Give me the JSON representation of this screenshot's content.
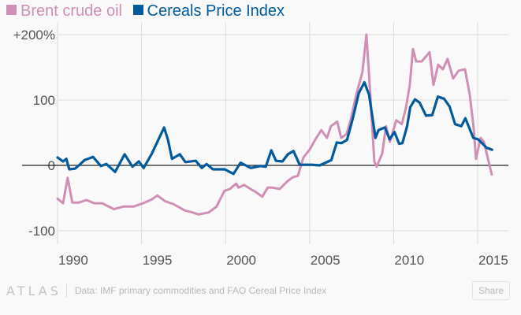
{
  "legend": [
    {
      "label": "Brent crude oil",
      "color": "#d08fb5"
    },
    {
      "label": "Cereals Price Index",
      "color": "#005a9c"
    }
  ],
  "footer": {
    "logo": "ATLAS",
    "source": "Data: IMF primary commodities and FAO Cereal Price Index",
    "share_label": "Share"
  },
  "chart_data": {
    "type": "line",
    "title": "",
    "xlabel": "",
    "ylabel": "",
    "xlim": [
      1988.5,
      2016.5
    ],
    "ylim": [
      -100,
      200
    ],
    "x_ticks": [
      1990,
      1995,
      2000,
      2005,
      2010,
      2015
    ],
    "x_tick_labels": [
      "1990",
      "1995",
      "2000",
      "2005",
      "2010",
      "2015"
    ],
    "y_ticks": [
      -100,
      0,
      100,
      200
    ],
    "y_tick_labels": [
      "-100",
      "0",
      "100",
      "+200%"
    ],
    "grid": true,
    "legend_position": "top-left",
    "series": [
      {
        "name": "Brent crude oil",
        "color": "#d08fb5",
        "points": [
          [
            1990.0,
            -51
          ],
          [
            1990.33,
            -58
          ],
          [
            1990.6,
            -19
          ],
          [
            1990.88,
            -57
          ],
          [
            1991.25,
            -57
          ],
          [
            1991.72,
            -53
          ],
          [
            1992.19,
            -58
          ],
          [
            1992.66,
            -58
          ],
          [
            1993.36,
            -67
          ],
          [
            1993.92,
            -63
          ],
          [
            1994.53,
            -63
          ],
          [
            1995.09,
            -58
          ],
          [
            1995.61,
            -52
          ],
          [
            1995.94,
            -46
          ],
          [
            1996.41,
            -55
          ],
          [
            1996.88,
            -59
          ],
          [
            1997.58,
            -69
          ],
          [
            1998.05,
            -72
          ],
          [
            1998.38,
            -75
          ],
          [
            1998.99,
            -72
          ],
          [
            1999.46,
            -63
          ],
          [
            1999.93,
            -39
          ],
          [
            2000.26,
            -36
          ],
          [
            2000.63,
            -28
          ],
          [
            2000.77,
            -34
          ],
          [
            2001.1,
            -30
          ],
          [
            2001.48,
            -36
          ],
          [
            2001.81,
            -41
          ],
          [
            2002.18,
            -48
          ],
          [
            2002.51,
            -34
          ],
          [
            2002.75,
            -34
          ],
          [
            2003.22,
            -36
          ],
          [
            2003.69,
            -24
          ],
          [
            2004.02,
            -18
          ],
          [
            2004.3,
            -16
          ],
          [
            2004.63,
            12
          ],
          [
            2005.0,
            24
          ],
          [
            2005.33,
            39
          ],
          [
            2005.7,
            54
          ],
          [
            2006.03,
            42
          ],
          [
            2006.27,
            60
          ],
          [
            2006.64,
            67
          ],
          [
            2006.88,
            42
          ],
          [
            2007.2,
            48
          ],
          [
            2007.44,
            69
          ],
          [
            2007.77,
            108
          ],
          [
            2008.14,
            142
          ],
          [
            2008.38,
            200
          ],
          [
            2008.61,
            108
          ],
          [
            2008.85,
            6
          ],
          [
            2008.99,
            -2
          ],
          [
            2009.32,
            18
          ],
          [
            2009.55,
            60
          ],
          [
            2009.78,
            36
          ],
          [
            2010.16,
            69
          ],
          [
            2010.49,
            63
          ],
          [
            2010.73,
            88
          ],
          [
            2010.96,
            123
          ],
          [
            2011.15,
            178
          ],
          [
            2011.34,
            159
          ],
          [
            2011.67,
            159
          ],
          [
            2012.14,
            173
          ],
          [
            2012.37,
            123
          ],
          [
            2012.65,
            154
          ],
          [
            2012.93,
            147
          ],
          [
            2013.21,
            163
          ],
          [
            2013.54,
            133
          ],
          [
            2013.87,
            145
          ],
          [
            2014.25,
            147
          ],
          [
            2014.53,
            108
          ],
          [
            2014.76,
            58
          ],
          [
            2014.9,
            10
          ],
          [
            2015.18,
            42
          ],
          [
            2015.37,
            36
          ],
          [
            2015.65,
            6
          ],
          [
            2015.84,
            -14
          ]
        ]
      },
      {
        "name": "Cereals Price Index",
        "color": "#005a9c",
        "points": [
          [
            1990.0,
            12
          ],
          [
            1990.33,
            6
          ],
          [
            1990.52,
            10
          ],
          [
            1990.7,
            -6
          ],
          [
            1991.03,
            -5
          ],
          [
            1991.27,
            0
          ],
          [
            1991.6,
            8
          ],
          [
            1992.11,
            13
          ],
          [
            1992.58,
            -1
          ],
          [
            1992.91,
            2
          ],
          [
            1993.43,
            -10
          ],
          [
            1993.99,
            17
          ],
          [
            1994.46,
            -2
          ],
          [
            1994.84,
            6
          ],
          [
            1995.12,
            -4
          ],
          [
            1995.59,
            17
          ],
          [
            1996.34,
            58
          ],
          [
            1996.57,
            39
          ],
          [
            1996.81,
            10
          ],
          [
            1997.28,
            17
          ],
          [
            1997.61,
            5
          ],
          [
            1998.22,
            7
          ],
          [
            1998.59,
            -4
          ],
          [
            1998.87,
            2
          ],
          [
            1999.25,
            -6
          ],
          [
            1999.95,
            -6
          ],
          [
            2000.47,
            -13
          ],
          [
            2000.89,
            4
          ],
          [
            2001.5,
            -4
          ],
          [
            2002.06,
            -1
          ],
          [
            2002.39,
            -2
          ],
          [
            2002.72,
            23
          ],
          [
            2003.0,
            7
          ],
          [
            2003.38,
            6
          ],
          [
            2003.71,
            17
          ],
          [
            2004.04,
            22
          ],
          [
            2004.41,
            1
          ],
          [
            2005.12,
            1
          ],
          [
            2005.59,
            0
          ],
          [
            2006.29,
            8
          ],
          [
            2006.62,
            35
          ],
          [
            2006.9,
            34
          ],
          [
            2007.23,
            39
          ],
          [
            2007.56,
            71
          ],
          [
            2007.93,
            111
          ],
          [
            2008.26,
            127
          ],
          [
            2008.54,
            108
          ],
          [
            2008.73,
            75
          ],
          [
            2008.92,
            42
          ],
          [
            2009.1,
            54
          ],
          [
            2009.48,
            58
          ],
          [
            2009.76,
            40
          ],
          [
            2010.05,
            51
          ],
          [
            2010.33,
            33
          ],
          [
            2010.52,
            34
          ],
          [
            2010.8,
            60
          ],
          [
            2010.99,
            89
          ],
          [
            2011.27,
            101
          ],
          [
            2011.55,
            96
          ],
          [
            2011.93,
            76
          ],
          [
            2012.3,
            77
          ],
          [
            2012.63,
            105
          ],
          [
            2013.0,
            102
          ],
          [
            2013.33,
            90
          ],
          [
            2013.66,
            63
          ],
          [
            2014.03,
            60
          ],
          [
            2014.27,
            72
          ],
          [
            2014.74,
            42
          ],
          [
            2015.02,
            40
          ],
          [
            2015.3,
            33
          ],
          [
            2015.53,
            27
          ],
          [
            2015.86,
            24
          ]
        ]
      }
    ]
  }
}
